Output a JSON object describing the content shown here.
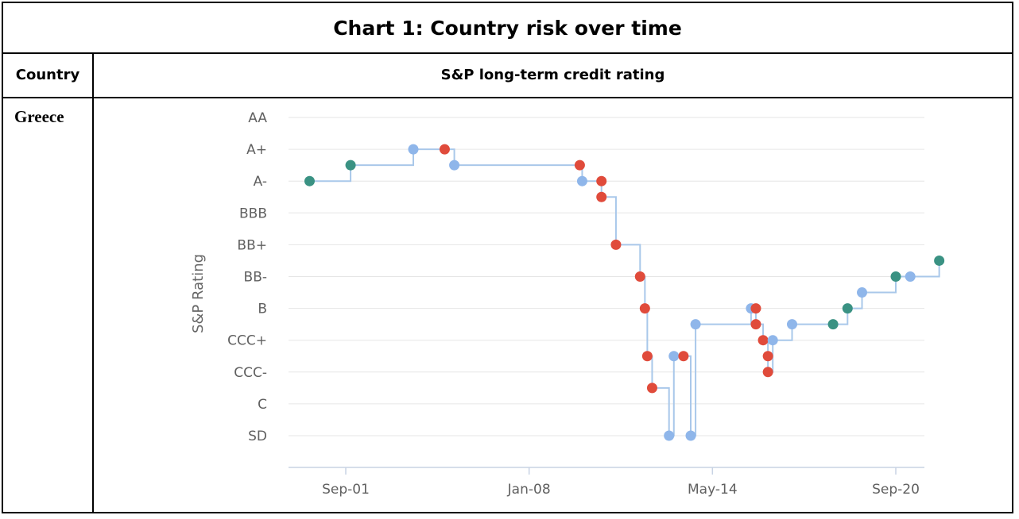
{
  "table": {
    "title": "Chart 1: Country risk over time",
    "header_country": "Country",
    "header_rating": "S&P long-term credit rating",
    "country": "Greece"
  },
  "colors": {
    "line": "#a9c8ea",
    "upgrade": "#3a9283",
    "downgrade": "#e04b3b",
    "neutral": "#8fb6ea",
    "grid": "#e6e6e6",
    "axis": "#c8d3e4"
  },
  "chart_data": {
    "type": "line",
    "title": "",
    "ylabel": "S&P Rating",
    "y_categories": [
      "AA",
      "A+",
      "A-",
      "BBB",
      "BB+",
      "BB-",
      "B",
      "CCC+",
      "CCC-",
      "C",
      "SD"
    ],
    "x_ticks": [
      "Sep-01",
      "Jan-08",
      "May-14",
      "Sep-20"
    ],
    "x_range": [
      "2000-06",
      "2021-03"
    ],
    "grid": true,
    "points": [
      {
        "x": "2000-06",
        "y": "A-",
        "type": "upgrade"
      },
      {
        "x": "2001-11",
        "y": "A",
        "type": "upgrade"
      },
      {
        "x": "2004-01",
        "y": "A+",
        "type": "neutral"
      },
      {
        "x": "2005-02",
        "y": "A+",
        "type": "downgrade"
      },
      {
        "x": "2005-06",
        "y": "A",
        "type": "neutral"
      },
      {
        "x": "2009-10",
        "y": "A",
        "type": "downgrade"
      },
      {
        "x": "2009-11",
        "y": "A-",
        "type": "neutral"
      },
      {
        "x": "2010-07",
        "y": "A-",
        "type": "downgrade"
      },
      {
        "x": "2010-07",
        "y": "BBB+",
        "type": "downgrade"
      },
      {
        "x": "2011-01",
        "y": "BB+",
        "type": "downgrade"
      },
      {
        "x": "2011-11",
        "y": "BB-",
        "type": "downgrade"
      },
      {
        "x": "2012-01",
        "y": "B",
        "type": "downgrade"
      },
      {
        "x": "2012-02",
        "y": "CCC",
        "type": "downgrade"
      },
      {
        "x": "2012-04",
        "y": "CC",
        "type": "downgrade"
      },
      {
        "x": "2012-11",
        "y": "SD",
        "type": "neutral"
      },
      {
        "x": "2013-01",
        "y": "CCC",
        "type": "neutral"
      },
      {
        "x": "2013-05",
        "y": "CCC",
        "type": "downgrade"
      },
      {
        "x": "2013-08",
        "y": "SD",
        "type": "neutral"
      },
      {
        "x": "2013-10",
        "y": "B-",
        "type": "neutral"
      },
      {
        "x": "2015-09",
        "y": "B",
        "type": "neutral"
      },
      {
        "x": "2015-11",
        "y": "B",
        "type": "downgrade"
      },
      {
        "x": "2015-11",
        "y": "B-",
        "type": "downgrade"
      },
      {
        "x": "2016-02",
        "y": "CCC+",
        "type": "downgrade"
      },
      {
        "x": "2016-04",
        "y": "CCC",
        "type": "downgrade"
      },
      {
        "x": "2016-04",
        "y": "CCC-",
        "type": "downgrade"
      },
      {
        "x": "2016-06",
        "y": "CCC+",
        "type": "neutral"
      },
      {
        "x": "2017-02",
        "y": "B-",
        "type": "neutral"
      },
      {
        "x": "2018-07",
        "y": "B-",
        "type": "upgrade"
      },
      {
        "x": "2019-01",
        "y": "B",
        "type": "upgrade"
      },
      {
        "x": "2019-07",
        "y": "B+",
        "type": "neutral"
      },
      {
        "x": "2020-09",
        "y": "BB-",
        "type": "upgrade"
      },
      {
        "x": "2021-03",
        "y": "BB-",
        "type": "neutral"
      },
      {
        "x": "2022-03",
        "y": "BB",
        "type": "upgrade"
      }
    ]
  }
}
